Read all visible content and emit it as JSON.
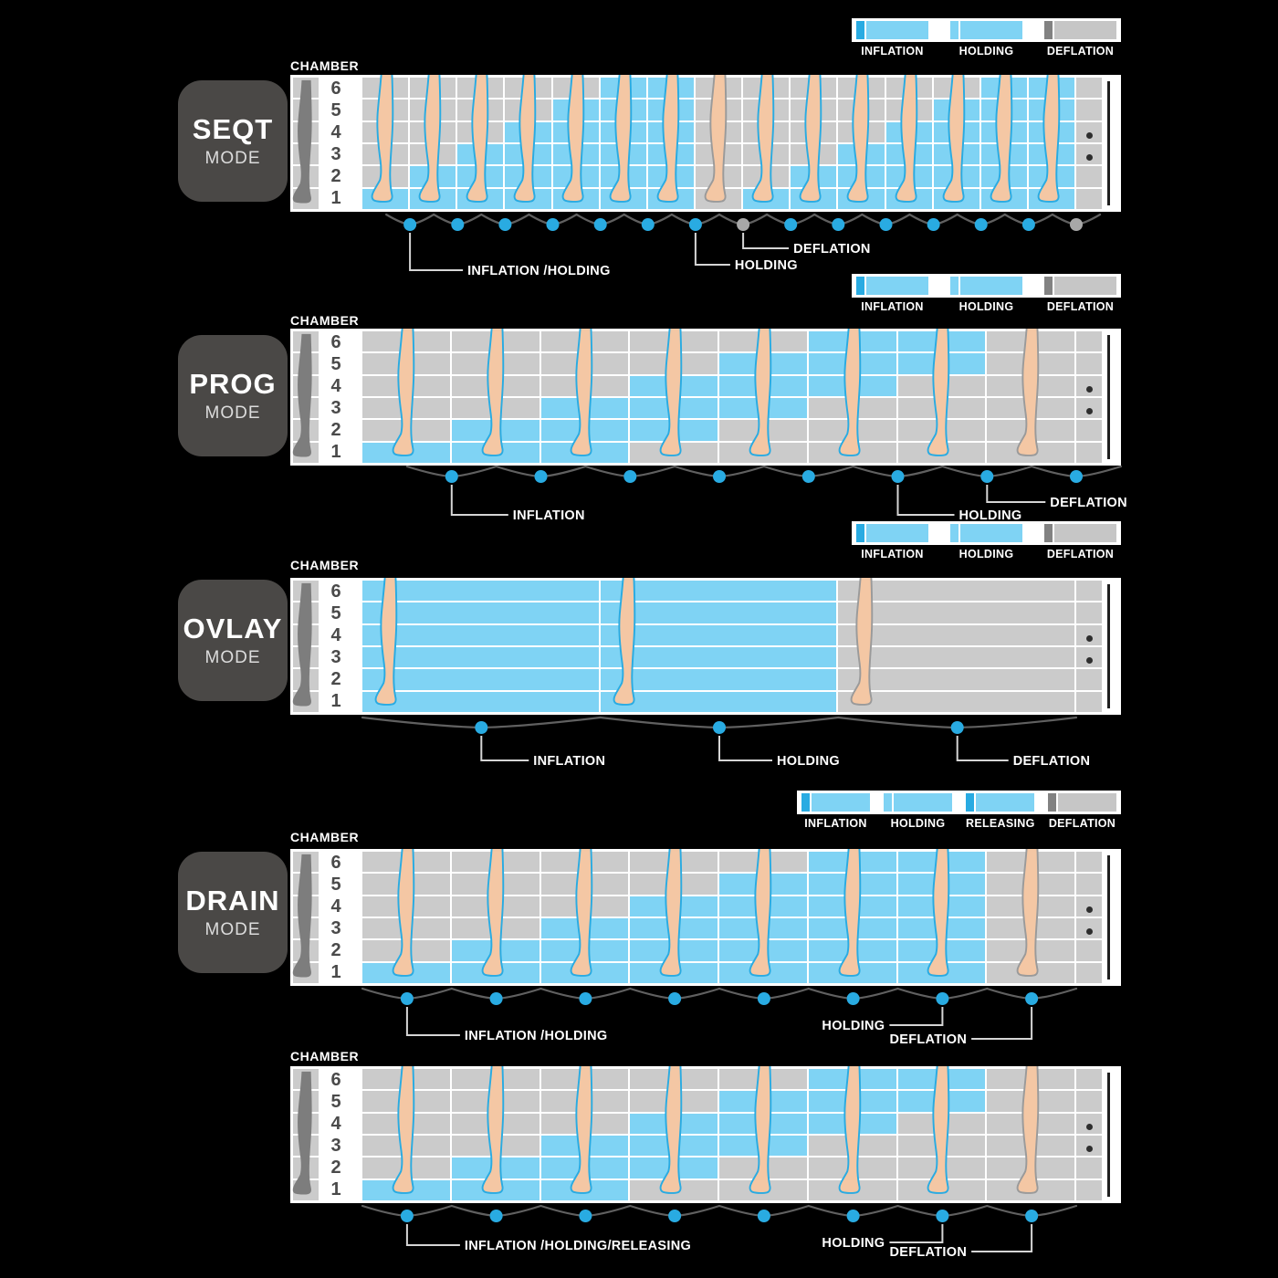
{
  "colors": {
    "background": "#000000",
    "panel_bg": "#ffffff",
    "cell_gray": "#cbcbcb",
    "cell_blue": "#7fd3f4",
    "accent_blue": "#29abe2",
    "skin": "#f4c7a4",
    "leg_outline_gray": "#9a9a9a",
    "silhouette_gray": "#7d7d7d",
    "badge_bg": "#4a4846",
    "number_gray": "#4a4a4a",
    "legend_thin_gray": "#828282",
    "legend_wide_gray": "#c6c6c6",
    "dot_gray": "#a8a8a8",
    "arc_gray": "#606060",
    "connector_gray": "#d5d5d5",
    "end_line": "#1f1f1f",
    "cont_dot": "#2e2e2e",
    "label_text": "#ffffff"
  },
  "chamber_label": "CHAMBER",
  "chamber_numbers": [
    "6",
    "5",
    "4",
    "3",
    "2",
    "1"
  ],
  "legend_types": {
    "standard": [
      {
        "label": "INFLATION",
        "thin": "accent_blue",
        "wide": "cell_blue"
      },
      {
        "label": "HOLDING",
        "thin": "cell_blue",
        "wide": "cell_blue"
      },
      {
        "label": "DEFLATION",
        "thin": "legend_thin_gray",
        "wide": "legend_wide_gray"
      }
    ],
    "drain": [
      {
        "label": "INFLATION",
        "thin": "accent_blue",
        "wide": "cell_blue"
      },
      {
        "label": "HOLDING",
        "thin": "cell_blue",
        "wide": "cell_blue"
      },
      {
        "label": "RELEASING",
        "thin": "accent_blue",
        "wide": "cell_blue"
      },
      {
        "label": "DEFLATION",
        "thin": "legend_thin_gray",
        "wide": "legend_wide_gray"
      }
    ]
  },
  "modes": [
    {
      "name": "SEQT",
      "sub": "MODE",
      "legend": "standard",
      "panels": [
        {
          "steps": [
            [
              1
            ],
            [
              1,
              2
            ],
            [
              1,
              2,
              3
            ],
            [
              1,
              2,
              3,
              4
            ],
            [
              1,
              2,
              3,
              4,
              5
            ],
            [
              1,
              2,
              3,
              4,
              5,
              6
            ],
            [
              1,
              2,
              3,
              4,
              5,
              6
            ],
            [],
            [
              1
            ],
            [
              1,
              2
            ],
            [
              1,
              2,
              3
            ],
            [
              1,
              2,
              3,
              4
            ],
            [
              1,
              2,
              3,
              4,
              5
            ],
            [
              1,
              2,
              3,
              4,
              5,
              6
            ],
            [
              1,
              2,
              3,
              4,
              5,
              6
            ]
          ],
          "leg_align": "center",
          "timeline": {
            "dot_mode": "boundary",
            "gray_dots": [
              7,
              14
            ],
            "labels": [
              {
                "text": "INFLATION /HOLDING",
                "dot": 0,
                "dir": "right",
                "drop": 50,
                "run": 58
              },
              {
                "text": "HOLDING",
                "dot": 6,
                "dir": "right",
                "drop": 44,
                "run": 38
              },
              {
                "text": "DEFLATION",
                "dot": 7,
                "dir": "right",
                "drop": 26,
                "run": 50
              }
            ]
          }
        }
      ]
    },
    {
      "name": "PROG",
      "sub": "MODE",
      "legend": "standard",
      "panels": [
        {
          "steps": [
            [
              1
            ],
            [
              1,
              2
            ],
            [
              1,
              2,
              3
            ],
            [
              2,
              3,
              4
            ],
            [
              3,
              4,
              5
            ],
            [
              4,
              5,
              6
            ],
            [
              5,
              6
            ],
            []
          ],
          "leg_align": "center",
          "timeline": {
            "dot_mode": "boundary",
            "gray_dots": [],
            "labels": [
              {
                "text": "INFLATION",
                "dot": 0,
                "dir": "right",
                "drop": 42,
                "run": 62
              },
              {
                "text": "HOLDING",
                "dot": 5,
                "dir": "right",
                "drop": 42,
                "run": 62
              },
              {
                "text": "DEFLATION",
                "dot": 6,
                "dir": "right",
                "drop": 28,
                "run": 64
              }
            ]
          }
        }
      ]
    },
    {
      "name": "OVLAY",
      "sub": "MODE",
      "legend": "standard",
      "panels": [
        {
          "steps": [
            [
              1,
              2,
              3,
              4,
              5,
              6
            ],
            [
              1,
              2,
              3,
              4,
              5,
              6
            ],
            []
          ],
          "leg_align": "left",
          "timeline": {
            "dot_mode": "center",
            "gray_dots": [],
            "labels": [
              {
                "text": "INFLATION",
                "dot": 0,
                "dir": "right",
                "drop": 36,
                "run": 52
              },
              {
                "text": "HOLDING",
                "dot": 1,
                "dir": "right",
                "drop": 36,
                "run": 58
              },
              {
                "text": "DEFLATION",
                "dot": 2,
                "dir": "right",
                "drop": 36,
                "run": 56
              }
            ]
          }
        }
      ]
    },
    {
      "name": "DRAIN",
      "sub": "MODE",
      "legend": "drain",
      "panels": [
        {
          "steps": [
            [
              1
            ],
            [
              1,
              2
            ],
            [
              1,
              2,
              3
            ],
            [
              1,
              2,
              3,
              4
            ],
            [
              1,
              2,
              3,
              4,
              5
            ],
            [
              1,
              2,
              3,
              4,
              5,
              6
            ],
            [
              1,
              2,
              3,
              4,
              5,
              6
            ],
            []
          ],
          "leg_align": "center",
          "timeline": {
            "dot_mode": "center",
            "gray_dots": [],
            "labels": [
              {
                "text": "INFLATION /HOLDING",
                "dot": 0,
                "dir": "right",
                "drop": 40,
                "run": 58
              },
              {
                "text": "HOLDING",
                "dot": 6,
                "dir": "left",
                "drop": 29,
                "run": 58
              },
              {
                "text": "DEFLATION",
                "dot": 7,
                "dir": "left",
                "drop": 44,
                "run": 66
              }
            ]
          }
        },
        {
          "steps": [
            [
              1
            ],
            [
              1,
              2
            ],
            [
              1,
              2,
              3
            ],
            [
              2,
              3,
              4
            ],
            [
              3,
              4,
              5
            ],
            [
              4,
              5,
              6
            ],
            [
              5,
              6
            ],
            []
          ],
          "leg_align": "center",
          "timeline": {
            "dot_mode": "center",
            "gray_dots": [],
            "labels": [
              {
                "text": "INFLATION /HOLDING/RELEASING",
                "dot": 0,
                "dir": "right",
                "drop": 32,
                "run": 58
              },
              {
                "text": "HOLDING",
                "dot": 6,
                "dir": "left",
                "drop": 29,
                "run": 58
              },
              {
                "text": "DEFLATION",
                "dot": 7,
                "dir": "left",
                "drop": 39,
                "run": 66
              }
            ]
          }
        }
      ]
    }
  ]
}
